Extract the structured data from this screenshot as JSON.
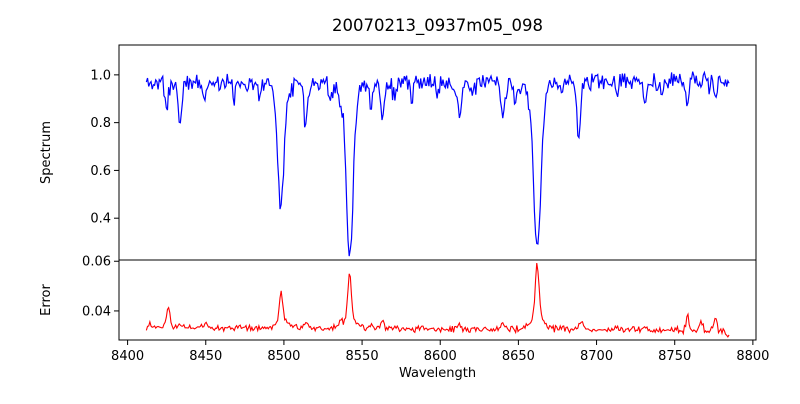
{
  "title": "20070213_0937m05_098",
  "background": "#ffffff",
  "chart_data": [
    {
      "type": "line",
      "panel": "top",
      "name": "spectrum",
      "ylabel": "Spectrum",
      "color": "#0000ff",
      "grid": false,
      "legend": "none",
      "xlim": [
        8394.5,
        8802
      ],
      "ylim": [
        0.225,
        1.125
      ],
      "yticks": [
        {
          "value": 1.0,
          "label": "1.0"
        },
        {
          "value": 0.8,
          "label": "0.8"
        },
        {
          "value": 0.6,
          "label": "0.6"
        },
        {
          "value": 0.4,
          "label": "0.4"
        }
      ],
      "x_start": 8412,
      "x_end": 8785,
      "x_step": 0.75,
      "continuum_base": 0.968,
      "continuum_slope": 2e-05,
      "noise_amplitude": 0.042,
      "dip_probability": 0.05,
      "dip_depth": 0.05,
      "seed": 11,
      "absorption_lines": [
        [
          8425,
          0.12,
          0.9
        ],
        [
          8433.5,
          0.16,
          1.2
        ],
        [
          8449,
          0.09,
          0.9
        ],
        [
          8468,
          0.07,
          0.9
        ],
        [
          8484,
          0.06,
          0.9
        ],
        [
          8498.02,
          0.5,
          1.9
        ],
        [
          8498,
          0.03,
          5
        ],
        [
          8514,
          0.16,
          1.1
        ],
        [
          8530,
          0.08,
          0.9
        ],
        [
          8536,
          0.07,
          0.9
        ],
        [
          8542.09,
          0.66,
          2.2
        ],
        [
          8542,
          0.045,
          7
        ],
        [
          8556,
          0.1,
          0.9
        ],
        [
          8563,
          0.15,
          1.3
        ],
        [
          8571,
          0.07,
          0.9
        ],
        [
          8582,
          0.08,
          0.9
        ],
        [
          8598,
          0.07,
          0.9
        ],
        [
          8612,
          0.14,
          1.2
        ],
        [
          8621,
          0.07,
          0.9
        ],
        [
          8640,
          0.15,
          1.4
        ],
        [
          8648,
          0.08,
          0.9
        ],
        [
          8662.14,
          0.64,
          2.4
        ],
        [
          8662,
          0.045,
          8
        ],
        [
          8688.6,
          0.25,
          1.1
        ],
        [
          8713,
          0.06,
          0.9
        ],
        [
          8731,
          0.1,
          1.0
        ],
        [
          8742,
          0.06,
          0.9
        ],
        [
          8758,
          0.11,
          0.9
        ],
        [
          8776,
          0.08,
          0.9
        ]
      ],
      "notable_features": [
        [
          8425,
          0.85
        ],
        [
          8434,
          0.82
        ],
        [
          8498,
          0.45
        ],
        [
          8514,
          0.8
        ],
        [
          8542,
          0.28
        ],
        [
          8563,
          0.8
        ],
        [
          8612,
          0.8
        ],
        [
          8640,
          0.77
        ],
        [
          8662,
          0.3
        ],
        [
          8688,
          0.7
        ]
      ]
    },
    {
      "type": "line",
      "panel": "bottom",
      "name": "error",
      "ylabel": "Error",
      "xlabel": "Wavelength",
      "color": "#ff0000",
      "grid": false,
      "legend": "none",
      "xlim": [
        8394.5,
        8802
      ],
      "ylim": [
        0.0283,
        0.0605
      ],
      "yticks": [
        {
          "value": 0.06,
          "label": "0.06"
        },
        {
          "value": 0.04,
          "label": "0.04"
        }
      ],
      "xticks": [
        {
          "value": 8400,
          "label": "8400"
        },
        {
          "value": 8450,
          "label": "8450"
        },
        {
          "value": 8500,
          "label": "8500"
        },
        {
          "value": 8550,
          "label": "8550"
        },
        {
          "value": 8600,
          "label": "8600"
        },
        {
          "value": 8650,
          "label": "8650"
        },
        {
          "value": 8700,
          "label": "8700"
        },
        {
          "value": 8750,
          "label": "8750"
        },
        {
          "value": 8800,
          "label": "8800"
        }
      ],
      "x_start": 8412,
      "x_end": 8785,
      "x_step": 0.75,
      "baseline": 0.0335,
      "baseline_slope": -3.5e-06,
      "noise_amplitude": 0.0016,
      "seed": 23,
      "end_dip_start": 8780,
      "end_dip_rate": 0.0006,
      "error_peaks": [
        [
          8414,
          0.0015,
          0.8
        ],
        [
          8426,
          0.0085,
          0.9
        ],
        [
          8434,
          0.002,
          1.0
        ],
        [
          8450,
          0.0015,
          0.9
        ],
        [
          8498,
          0.0125,
          1.1
        ],
        [
          8500,
          0.0025,
          4
        ],
        [
          8514,
          0.003,
          1.2
        ],
        [
          8536,
          0.0015,
          1.0
        ],
        [
          8542,
          0.019,
          1.2
        ],
        [
          8542,
          0.0028,
          5
        ],
        [
          8556,
          0.0015,
          1.0
        ],
        [
          8563,
          0.002,
          1.2
        ],
        [
          8612,
          0.0015,
          1.0
        ],
        [
          8640,
          0.002,
          1.2
        ],
        [
          8662,
          0.0228,
          1.2
        ],
        [
          8662,
          0.0038,
          5
        ],
        [
          8690,
          0.004,
          1.2
        ],
        [
          8731,
          0.0015,
          1.0
        ],
        [
          8758,
          0.0065,
          0.8
        ],
        [
          8767,
          0.0038,
          0.9
        ],
        [
          8776,
          0.0048,
          0.9
        ]
      ],
      "notable_features": [
        [
          8426,
          0.043
        ],
        [
          8498,
          0.047
        ],
        [
          8542,
          0.054
        ],
        [
          8662,
          0.059
        ],
        [
          8690,
          0.038
        ],
        [
          8758,
          0.042
        ]
      ]
    }
  ]
}
